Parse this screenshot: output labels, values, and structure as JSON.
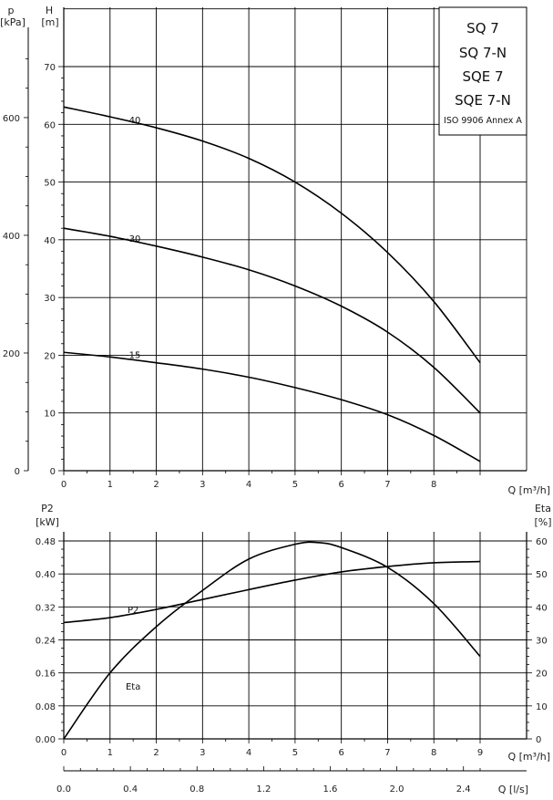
{
  "chart_data": [
    {
      "type": "line",
      "title_lines": [
        "SQ 7",
        "SQ 7-N",
        "SQE 7",
        "SQE 7-N"
      ],
      "annotation": "ISO 9906 Annex A",
      "xlabel": "Q [m³/h]",
      "ylabel": "H",
      "ylabel_unit": "[m]",
      "ylabel2": "p",
      "ylabel2_unit": "[kPa]",
      "xlim": [
        0,
        9
      ],
      "ylim": [
        0,
        80
      ],
      "x_ticks": [
        "0",
        "1",
        "2",
        "3",
        "4",
        "5",
        "6",
        "7",
        "8"
      ],
      "y_ticks": [
        "0",
        "10",
        "20",
        "30",
        "40",
        "50",
        "60",
        "70"
      ],
      "y2_ticks": [
        "0",
        "200",
        "400",
        "600"
      ],
      "series": [
        {
          "name": "-40",
          "x": [
            0,
            1,
            2,
            3,
            4,
            5,
            6,
            7,
            8,
            9
          ],
          "y": [
            63.0,
            61.3,
            59.4,
            57.1,
            54.1,
            50.0,
            44.6,
            37.8,
            29.3,
            18.7
          ]
        },
        {
          "name": "-30",
          "x": [
            0,
            1,
            2,
            3,
            4,
            5,
            6,
            7,
            8,
            9
          ],
          "y": [
            42.0,
            40.6,
            38.9,
            37.0,
            34.8,
            32.0,
            28.5,
            24.0,
            17.9,
            10.0
          ]
        },
        {
          "name": "-15",
          "x": [
            0,
            1,
            2,
            3,
            4,
            5,
            6,
            7,
            8,
            9
          ],
          "y": [
            20.5,
            19.7,
            18.7,
            17.6,
            16.2,
            14.4,
            12.3,
            9.7,
            6.1,
            1.6
          ]
        }
      ]
    },
    {
      "type": "line",
      "xlabel": "Q [m³/h]",
      "xlabel2": "Q [l/s]",
      "ylabel": "P2",
      "ylabel_unit": "[kW]",
      "ylabel2": "Eta",
      "ylabel2_unit": "[%]",
      "xlim": [
        0,
        9
      ],
      "ylim": [
        0,
        0.48
      ],
      "y2lim": [
        0,
        60
      ],
      "x_ticks": [
        "0",
        "1",
        "2",
        "3",
        "4",
        "5",
        "6",
        "7",
        "8",
        "9"
      ],
      "x2_ticks": [
        "0.0",
        "0.4",
        "0.8",
        "1.2",
        "1.6",
        "2.0",
        "2.4"
      ],
      "y_ticks": [
        "0.00",
        "0.08",
        "0.16",
        "0.24",
        "0.32",
        "0.40",
        "0.48"
      ],
      "y2_ticks": [
        "0",
        "10",
        "20",
        "30",
        "40",
        "50",
        "60"
      ],
      "series": [
        {
          "name": "P2",
          "axis": "left",
          "x": [
            0,
            1,
            2,
            3,
            4,
            5,
            6,
            7,
            8,
            9
          ],
          "y": [
            0.282,
            0.294,
            0.314,
            0.338,
            0.362,
            0.385,
            0.405,
            0.418,
            0.427,
            0.43
          ]
        },
        {
          "name": "Eta",
          "axis": "right",
          "x": [
            0,
            1,
            2,
            3,
            4,
            5,
            5.5,
            6,
            7,
            8,
            9
          ],
          "y": [
            0,
            20,
            34,
            45,
            54.5,
            59,
            59.5,
            58,
            52,
            41,
            25
          ]
        }
      ]
    }
  ]
}
